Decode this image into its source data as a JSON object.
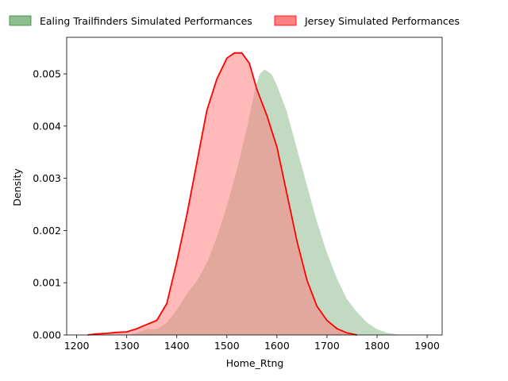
{
  "chart_data": {
    "type": "area",
    "xlabel": "Home_Rtng",
    "ylabel": "Density",
    "xlim": [
      1180,
      1930
    ],
    "ylim": [
      0,
      0.0057
    ],
    "grid": false,
    "legend_placement": "top, above plot",
    "xticks": [
      1200,
      1300,
      1400,
      1500,
      1600,
      1700,
      1800,
      1900
    ],
    "xtick_labels": [
      "1200",
      "1300",
      "1400",
      "1500",
      "1600",
      "1700",
      "1800",
      "1900"
    ],
    "yticks": [
      0,
      0.001,
      0.002,
      0.003,
      0.004,
      0.005
    ],
    "ytick_labels": [
      "0.000",
      "0.001",
      "0.002",
      "0.003",
      "0.004",
      "0.005"
    ],
    "series": [
      {
        "name": "Ealing Trailfinders Simulated Performances",
        "color": "#2e8b2e",
        "fill_color": "#8fbc8f",
        "points": [
          [
            1300,
            0.0
          ],
          [
            1320,
            5e-05
          ],
          [
            1340,
            0.00012
          ],
          [
            1360,
            0.00012
          ],
          [
            1380,
            0.00025
          ],
          [
            1400,
            0.0005
          ],
          [
            1420,
            0.0008
          ],
          [
            1440,
            0.00105
          ],
          [
            1460,
            0.0014
          ],
          [
            1480,
            0.0019
          ],
          [
            1500,
            0.0025
          ],
          [
            1520,
            0.0032
          ],
          [
            1540,
            0.004
          ],
          [
            1555,
            0.0047
          ],
          [
            1565,
            0.005
          ],
          [
            1575,
            0.0051
          ],
          [
            1590,
            0.005
          ],
          [
            1600,
            0.0048
          ],
          [
            1620,
            0.0043
          ],
          [
            1640,
            0.0036
          ],
          [
            1660,
            0.0029
          ],
          [
            1680,
            0.0022
          ],
          [
            1700,
            0.0016
          ],
          [
            1720,
            0.0011
          ],
          [
            1740,
            0.0007
          ],
          [
            1760,
            0.00045
          ],
          [
            1780,
            0.00025
          ],
          [
            1800,
            0.00012
          ],
          [
            1820,
            5e-05
          ],
          [
            1840,
            2e-05
          ],
          [
            1860,
            0.0
          ]
        ]
      },
      {
        "name": "Jersey Simulated Performances",
        "color": "#ff0000",
        "fill_color": "#ff8080",
        "points": [
          [
            1222,
            0.0
          ],
          [
            1240,
            2e-05
          ],
          [
            1260,
            3e-05
          ],
          [
            1280,
            5e-05
          ],
          [
            1300,
            6e-05
          ],
          [
            1320,
            0.00012
          ],
          [
            1340,
            0.0002
          ],
          [
            1360,
            0.00028
          ],
          [
            1380,
            0.0006
          ],
          [
            1400,
            0.0014
          ],
          [
            1420,
            0.0023
          ],
          [
            1440,
            0.0033
          ],
          [
            1460,
            0.0043
          ],
          [
            1480,
            0.0049
          ],
          [
            1500,
            0.0053
          ],
          [
            1515,
            0.0054
          ],
          [
            1530,
            0.0054
          ],
          [
            1545,
            0.0052
          ],
          [
            1560,
            0.0047
          ],
          [
            1580,
            0.0042
          ],
          [
            1600,
            0.0036
          ],
          [
            1620,
            0.0027
          ],
          [
            1640,
            0.0018
          ],
          [
            1660,
            0.00105
          ],
          [
            1680,
            0.00055
          ],
          [
            1700,
            0.00028
          ],
          [
            1720,
            0.00012
          ],
          [
            1740,
            4e-05
          ],
          [
            1760,
            0.0
          ]
        ]
      }
    ]
  }
}
